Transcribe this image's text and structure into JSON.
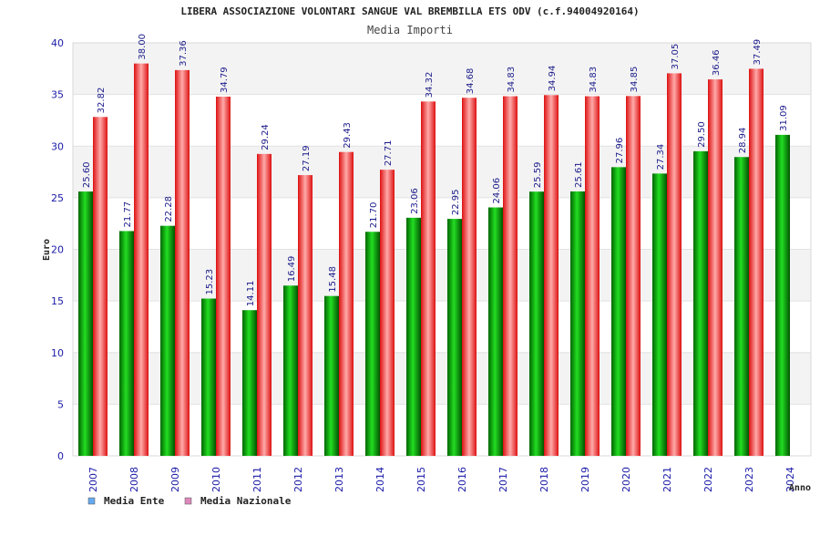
{
  "chart_data": {
    "type": "bar",
    "title": "LIBERA ASSOCIAZIONE VOLONTARI SANGUE VAL BREMBILLA ETS ODV (c.f.94004920164)",
    "subtitle": "Media Importi",
    "xlabel": "Anno",
    "ylabel": "Euro",
    "ylim": [
      0,
      40
    ],
    "yticks": [
      0,
      5,
      10,
      15,
      20,
      25,
      30,
      35,
      40
    ],
    "grid": true,
    "legend_position": "bottom-left",
    "categories": [
      "2007",
      "2008",
      "2009",
      "2010",
      "2011",
      "2012",
      "2013",
      "2014",
      "2015",
      "2016",
      "2017",
      "2018",
      "2019",
      "2020",
      "2021",
      "2022",
      "2023",
      "2024"
    ],
    "series": [
      {
        "name": "Media Ente",
        "color": "#00aa00",
        "legend_color": "#66aaee",
        "values": [
          25.6,
          21.77,
          22.28,
          15.23,
          14.11,
          16.49,
          15.48,
          21.7,
          23.06,
          22.95,
          24.06,
          25.59,
          25.61,
          27.96,
          27.34,
          29.5,
          28.94,
          31.09
        ],
        "labels": [
          "25.60",
          "21.77",
          "22.28",
          "15.23",
          "14.11",
          "16.49",
          "15.48",
          "21.70",
          "23.06",
          "22.95",
          "24.06",
          "25.59",
          "25.61",
          "27.96",
          "27.34",
          "29.50",
          "28.94",
          "31.09"
        ]
      },
      {
        "name": "Media Nazionale",
        "color": "#ee2222",
        "legend_color": "#dd88bb",
        "values": [
          32.82,
          38.0,
          37.36,
          34.79,
          29.24,
          27.19,
          29.43,
          27.71,
          34.32,
          34.68,
          34.83,
          34.94,
          34.83,
          34.85,
          37.05,
          36.46,
          37.49,
          null
        ],
        "labels": [
          "32.82",
          "38.00",
          "37.36",
          "34.79",
          "29.24",
          "27.19",
          "29.43",
          "27.71",
          "34.32",
          "34.68",
          "34.83",
          "34.94",
          "34.83",
          "34.85",
          "37.05",
          "36.46",
          "37.49",
          ""
        ]
      }
    ]
  }
}
